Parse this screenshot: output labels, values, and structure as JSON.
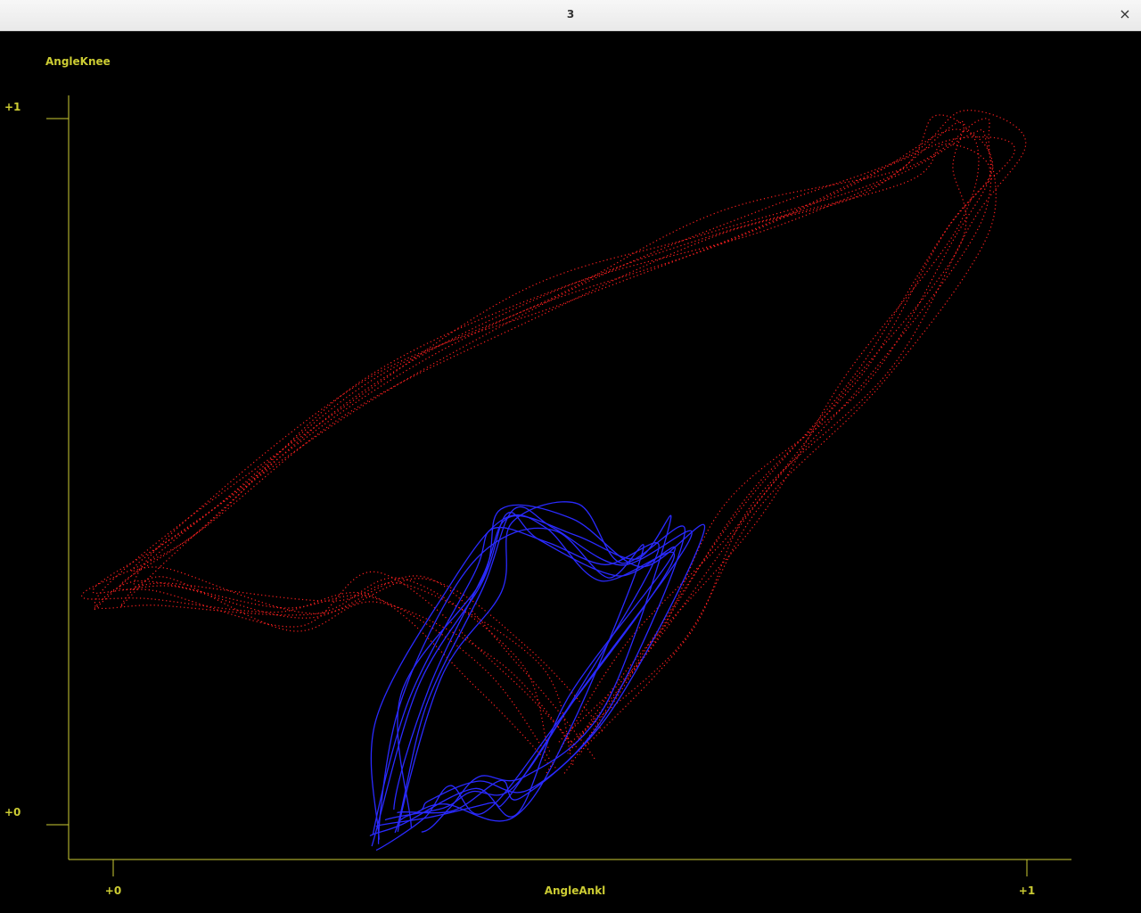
{
  "window": {
    "title": "3",
    "close_glyph": "×"
  },
  "chart_data": {
    "type": "line",
    "xlabel": "AngleAnkl",
    "ylabel": "AngleKnee",
    "xlim": [
      0,
      1
    ],
    "ylim": [
      0,
      1
    ],
    "x_ticks": [
      "+0",
      "+1"
    ],
    "y_ticks": [
      "+0",
      "+1"
    ],
    "grid": false,
    "axis_color": "#cccc33",
    "series": [
      {
        "color": "#ff2020",
        "style": "dotted",
        "loops": 8,
        "x": [
          0.5,
          0.44,
          0.31,
          0.22,
          0.06,
          0.0,
          0.1,
          0.28,
          0.48,
          0.68,
          0.86,
          0.93,
          0.96,
          0.93,
          0.83,
          0.7,
          0.6,
          0.5
        ],
        "y": [
          0.1,
          0.22,
          0.34,
          0.3,
          0.34,
          0.33,
          0.44,
          0.61,
          0.75,
          0.85,
          0.93,
          0.99,
          0.95,
          0.85,
          0.63,
          0.45,
          0.25,
          0.1
        ]
      },
      {
        "color": "#2a2aff",
        "style": "solid",
        "loops": 8,
        "x": [
          0.31,
          0.33,
          0.4,
          0.44,
          0.5,
          0.56,
          0.62,
          0.52,
          0.45,
          0.4,
          0.35,
          0.31
        ],
        "y": [
          0.0,
          0.18,
          0.34,
          0.43,
          0.42,
          0.38,
          0.4,
          0.17,
          0.04,
          0.05,
          0.02,
          0.0
        ]
      }
    ]
  }
}
